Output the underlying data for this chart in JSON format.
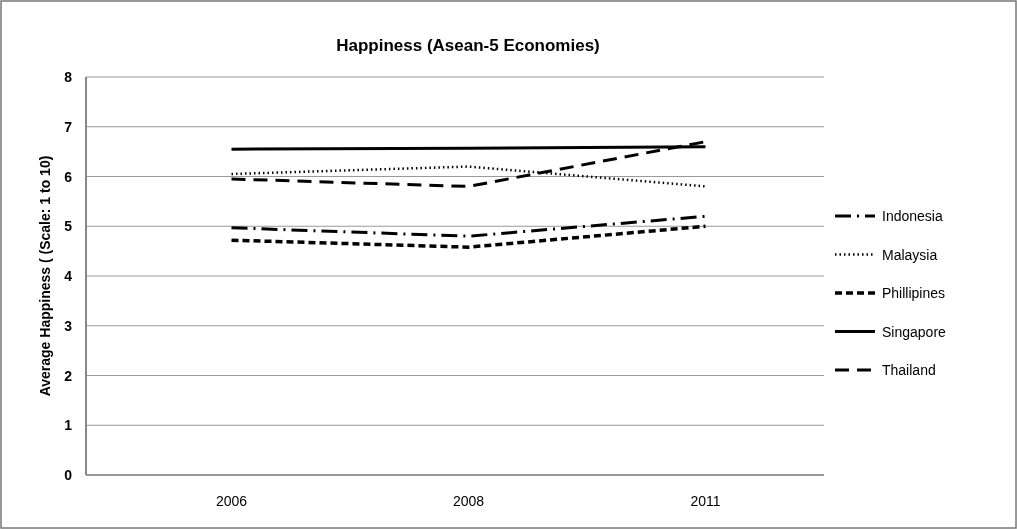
{
  "chart_data": {
    "type": "line",
    "title": "Happiness  (Asean-5 Economies)",
    "ylabel": "Average Happiness ( (Scale: 1 to 10)",
    "categories": [
      "2006",
      "2008",
      "2011"
    ],
    "ylim": [
      0,
      8
    ],
    "yticks": [
      0,
      1,
      2,
      3,
      4,
      5,
      6,
      7,
      8
    ],
    "grid": "y",
    "legend": "right",
    "marker": "none",
    "series": [
      {
        "name": "Indonesia",
        "color": "#000000",
        "line_style": "dashdot",
        "values": [
          4.97,
          4.8,
          5.2
        ]
      },
      {
        "name": "Malaysia",
        "color": "#000000",
        "line_style": "dotted",
        "values": [
          6.05,
          6.2,
          5.8
        ]
      },
      {
        "name": "Phillipines",
        "color": "#000000",
        "line_style": "dashed",
        "values": [
          4.72,
          4.58,
          5.0
        ]
      },
      {
        "name": "Singapore",
        "color": "#000000",
        "line_style": "solid",
        "values": [
          6.55,
          6.57,
          6.6
        ]
      },
      {
        "name": "Thailand",
        "color": "#000000",
        "line_style": "longdash",
        "values": [
          5.95,
          5.8,
          6.7
        ]
      }
    ]
  }
}
